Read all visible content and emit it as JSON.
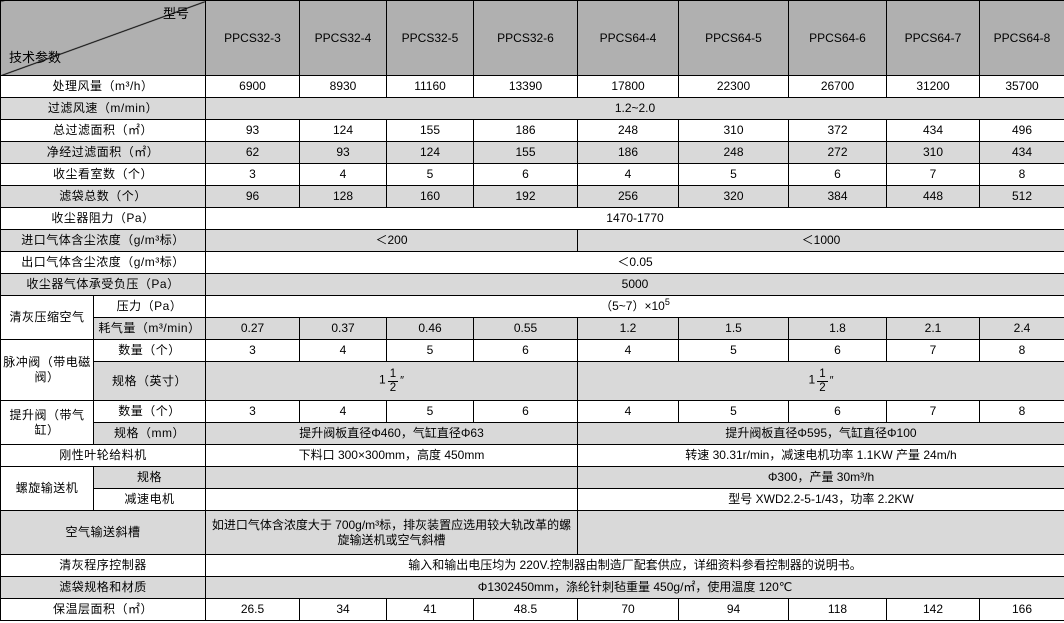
{
  "colors": {
    "header_bg": "#b0b0b0",
    "stripe_bg": "#d9d9d9",
    "row_bg": "#ffffff",
    "border": "#000000"
  },
  "header": {
    "corner": {
      "top_right": "型号",
      "bottom_left": "技术参数"
    },
    "models": [
      "PPCS32-3",
      "PPCS32-4",
      "PPCS32-5",
      "PPCS32-6",
      "PPCS64-4",
      "PPCS64-5",
      "PPCS64-6",
      "PPCS64-7",
      "PPCS64-8"
    ]
  },
  "rows": [
    {
      "bg": "w",
      "cells": [
        {
          "t": "处理风量（m³/h）",
          "cs": 2,
          "cls": "lab",
          "n": "row-label"
        },
        {
          "t": "6900"
        },
        {
          "t": "8930"
        },
        {
          "t": "11160"
        },
        {
          "t": "13390"
        },
        {
          "t": "17800"
        },
        {
          "t": "22300"
        },
        {
          "t": "26700"
        },
        {
          "t": "31200"
        },
        {
          "t": "35700"
        }
      ]
    },
    {
      "bg": "g",
      "cells": [
        {
          "t": "过滤风速（m/min）",
          "cs": 2,
          "cls": "lab",
          "n": "row-label"
        },
        {
          "t": "1.2~2.0",
          "cs": 9
        }
      ]
    },
    {
      "bg": "w",
      "cells": [
        {
          "t": "总过滤面积（㎡）",
          "cs": 2,
          "cls": "lab",
          "n": "row-label"
        },
        {
          "t": "93"
        },
        {
          "t": "124"
        },
        {
          "t": "155"
        },
        {
          "t": "186"
        },
        {
          "t": "248"
        },
        {
          "t": "310"
        },
        {
          "t": "372"
        },
        {
          "t": "434"
        },
        {
          "t": "496"
        }
      ]
    },
    {
      "bg": "g",
      "cells": [
        {
          "t": "净经过滤面积（㎡）",
          "cs": 2,
          "cls": "lab",
          "n": "row-label"
        },
        {
          "t": "62"
        },
        {
          "t": "93"
        },
        {
          "t": "124"
        },
        {
          "t": "155"
        },
        {
          "t": "186"
        },
        {
          "t": "248"
        },
        {
          "t": "272"
        },
        {
          "t": "310"
        },
        {
          "t": "434"
        }
      ]
    },
    {
      "bg": "w",
      "cells": [
        {
          "t": "收尘看室数（个）",
          "cs": 2,
          "cls": "lab",
          "n": "row-label"
        },
        {
          "t": "3"
        },
        {
          "t": "4"
        },
        {
          "t": "5"
        },
        {
          "t": "6"
        },
        {
          "t": "4"
        },
        {
          "t": "5"
        },
        {
          "t": "6"
        },
        {
          "t": "7"
        },
        {
          "t": "8"
        }
      ]
    },
    {
      "bg": "g",
      "cells": [
        {
          "t": "滤袋总数（个）",
          "cs": 2,
          "cls": "lab",
          "n": "row-label"
        },
        {
          "t": "96"
        },
        {
          "t": "128"
        },
        {
          "t": "160"
        },
        {
          "t": "192"
        },
        {
          "t": "256"
        },
        {
          "t": "320"
        },
        {
          "t": "384"
        },
        {
          "t": "448"
        },
        {
          "t": "512"
        }
      ]
    },
    {
      "bg": "w",
      "cells": [
        {
          "t": "收尘器阻力（Pa）",
          "cs": 2,
          "cls": "lab",
          "n": "row-label"
        },
        {
          "t": "1470-1770",
          "cs": 9
        }
      ]
    },
    {
      "bg": "g",
      "cells": [
        {
          "t": "进口气体含尘浓度（g/m³标）",
          "cs": 2,
          "cls": "lab",
          "n": "row-label"
        },
        {
          "t": "＜200",
          "cs": 4
        },
        {
          "t": "＜1000",
          "cs": 5
        }
      ]
    },
    {
      "bg": "w",
      "cells": [
        {
          "t": "出口气体含尘浓度（g/m³标）",
          "cs": 2,
          "cls": "lab",
          "n": "row-label"
        },
        {
          "t": "＜0.05",
          "cs": 9
        }
      ]
    },
    {
      "bg": "g",
      "cells": [
        {
          "t": "收尘器气体承受负压（Pa）",
          "cs": 2,
          "cls": "lab",
          "n": "row-label"
        },
        {
          "t": "5000",
          "cs": 9
        }
      ]
    },
    {
      "bg": "w",
      "cells": [
        {
          "t": "清灰压缩空气",
          "rs": 2,
          "fw": true,
          "cls": "lab",
          "n": "group-label"
        },
        {
          "t": "压力（Pa）",
          "cls": "lab",
          "n": "sub-label"
        },
        {
          "k": "pow",
          "base": "（5~7）×10",
          "sup": "5",
          "cs": 9
        }
      ]
    },
    {
      "bg": "g",
      "cells": [
        {
          "t": "耗气量（m³/min）",
          "cls": "lab",
          "n": "sub-label"
        },
        {
          "t": "0.27"
        },
        {
          "t": "0.37"
        },
        {
          "t": "0.46"
        },
        {
          "t": "0.55"
        },
        {
          "t": "1.2"
        },
        {
          "t": "1.5"
        },
        {
          "t": "1.8"
        },
        {
          "t": "2.1"
        },
        {
          "t": "2.4"
        }
      ]
    },
    {
      "bg": "w",
      "cells": [
        {
          "t": "脉冲阀（带电磁阀）",
          "rs": 2,
          "fw": true,
          "cls": "lab",
          "n": "group-label"
        },
        {
          "t": "数量（个）",
          "cls": "lab",
          "n": "sub-label"
        },
        {
          "t": "3"
        },
        {
          "t": "4"
        },
        {
          "t": "5"
        },
        {
          "t": "6"
        },
        {
          "t": "4"
        },
        {
          "t": "5"
        },
        {
          "t": "6"
        },
        {
          "t": "7"
        },
        {
          "t": "8"
        }
      ]
    },
    {
      "bg": "g",
      "h": 39,
      "cells": [
        {
          "t": "规格（英寸）",
          "cls": "lab",
          "n": "sub-label"
        },
        {
          "k": "frac",
          "whole": "1",
          "num": "1",
          "den": "2",
          "unit": "″",
          "cs": 4
        },
        {
          "k": "frac",
          "whole": "1",
          "num": "1",
          "den": "2",
          "unit": "″",
          "cs": 5
        }
      ]
    },
    {
      "bg": "w",
      "cells": [
        {
          "t": "提升阀（带气缸）",
          "rs": 2,
          "fw": true,
          "cls": "lab",
          "n": "group-label"
        },
        {
          "t": "数量（个）",
          "cls": "lab",
          "n": "sub-label"
        },
        {
          "t": "3"
        },
        {
          "t": "4"
        },
        {
          "t": "5"
        },
        {
          "t": "6"
        },
        {
          "t": "4"
        },
        {
          "t": "5"
        },
        {
          "t": "6"
        },
        {
          "t": "7"
        },
        {
          "t": "8"
        }
      ]
    },
    {
      "bg": "g",
      "cells": [
        {
          "t": "规格（mm）",
          "cls": "lab",
          "n": "sub-label"
        },
        {
          "t": "提升阀板直径Φ460，气缸直径Φ63",
          "cs": 4
        },
        {
          "t": "提升阀板直径Φ595，气缸直径Φ100",
          "cs": 5
        }
      ]
    },
    {
      "bg": "w",
      "cells": [
        {
          "t": "刚性叶轮给料机",
          "cs": 2,
          "cls": "lab",
          "n": "row-label"
        },
        {
          "t": "下料口 300×300mm，高度 450mm",
          "cs": 4
        },
        {
          "t": "转速 30.31r/min，减速电机功率 1.1KW 产量 24m/h",
          "cs": 5
        }
      ]
    },
    {
      "bg": "g",
      "cells": [
        {
          "t": "螺旋输送机",
          "rs": 2,
          "fw": true,
          "cls": "lab",
          "n": "group-label"
        },
        {
          "t": "规格",
          "cls": "lab",
          "n": "sub-label"
        },
        {
          "t": "",
          "cs": 4
        },
        {
          "t": "Φ300，产量 30m³/h",
          "cs": 5
        }
      ]
    },
    {
      "bg": "w",
      "cells": [
        {
          "t": "减速电机",
          "cls": "lab",
          "n": "sub-label"
        },
        {
          "t": "",
          "cs": 4
        },
        {
          "t": "型号 XWD2.2-5-1/43，功率 2.2KW",
          "cs": 5
        }
      ]
    },
    {
      "bg": "g",
      "h": 44,
      "cells": [
        {
          "t": "空气输送斜槽",
          "cs": 2,
          "cls": "lab",
          "n": "row-label"
        },
        {
          "t": "如进口气体含浓度大于 700g/m³标，排灰装置应选用较大轨改革的螺旋输送机或空气斜槽",
          "cs": 4
        },
        {
          "t": "",
          "cs": 5
        }
      ]
    },
    {
      "bg": "w",
      "cells": [
        {
          "t": "清灰程序控制器",
          "cs": 2,
          "cls": "lab",
          "n": "row-label"
        },
        {
          "t": "输入和输出电压均为 220V.控制器由制造厂配套供应，详细资料参看控制器的说明书。",
          "cs": 9
        }
      ]
    },
    {
      "bg": "g",
      "cells": [
        {
          "t": "滤袋规格和材质",
          "cs": 2,
          "cls": "lab",
          "n": "row-label"
        },
        {
          "t": "Φ1302450mm，涤纶针刺毡重量 450g/㎡，使用温度 120℃",
          "cs": 9
        }
      ]
    },
    {
      "bg": "w",
      "cells": [
        {
          "t": "保温层面积（㎡）",
          "cs": 2,
          "cls": "lab",
          "n": "row-label"
        },
        {
          "t": "26.5"
        },
        {
          "t": "34"
        },
        {
          "t": "41"
        },
        {
          "t": "48.5"
        },
        {
          "t": "70"
        },
        {
          "t": "94"
        },
        {
          "t": "118"
        },
        {
          "t": "142"
        },
        {
          "t": "166"
        }
      ]
    }
  ]
}
